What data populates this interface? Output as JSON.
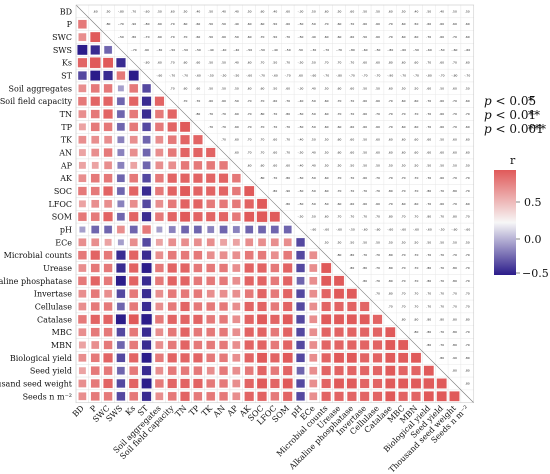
{
  "chart_data": {
    "type": "heatmap",
    "variables": [
      "BD",
      "P",
      "SWC",
      "SWS",
      "Ks",
      "ST",
      "Soil aggregates",
      "Soil field capacity",
      "TN",
      "TP",
      "TK",
      "AN",
      "AP",
      "AK",
      "SOC",
      "LFOC",
      "SOM",
      "pH",
      "ECe",
      "Microbial counts",
      "Urease",
      "Alkaline phosphatase",
      "Invertase",
      "Cellulase",
      "Catalase",
      "MBC",
      "MBN",
      "Biological yield",
      "Seed yield",
      "Thousand seed weight",
      "Seeds n m⁻²"
    ],
    "group_values": [
      [
        1.0,
        0.6,
        0.5,
        -0.8,
        0.7,
        -0.6,
        0.5,
        0.6,
        0.5,
        0.4,
        0.5,
        0.4,
        0.4,
        0.5,
        0.6,
        0.4,
        0.6,
        -0.3,
        0.5,
        0.6,
        0.5,
        0.6,
        0.5,
        0.5,
        0.6,
        0.5,
        0.4,
        0.5,
        0.4,
        0.5,
        0.5
      ],
      [
        0.6,
        1.0,
        0.8,
        -0.7,
        0.9,
        -0.8,
        0.6,
        0.7,
        0.6,
        0.6,
        0.5,
        0.5,
        0.4,
        0.6,
        0.6,
        0.5,
        0.6,
        -0.5,
        0.5,
        0.7,
        0.6,
        0.7,
        0.6,
        0.6,
        0.7,
        0.6,
        0.5,
        0.6,
        0.6,
        0.6,
        0.6
      ],
      [
        0.5,
        0.8,
        1.0,
        -0.5,
        0.8,
        -0.7,
        0.6,
        0.7,
        0.7,
        0.6,
        0.5,
        0.6,
        0.5,
        0.6,
        0.7,
        0.5,
        0.7,
        -0.5,
        0.4,
        0.6,
        0.6,
        0.6,
        0.5,
        0.6,
        0.7,
        0.6,
        0.6,
        0.7,
        0.6,
        0.7,
        0.6
      ],
      [
        -0.8,
        -0.7,
        -0.5,
        1.0,
        -0.7,
        0.6,
        -0.3,
        -0.5,
        -0.5,
        -0.5,
        -0.4,
        -0.4,
        -0.4,
        -0.5,
        -0.5,
        -0.4,
        -0.5,
        0.5,
        -0.3,
        -0.7,
        -0.7,
        -0.8,
        -0.6,
        -0.5,
        -0.8,
        -0.6,
        -0.5,
        -0.6,
        -0.5,
        -0.6,
        -0.6
      ],
      [
        0.7,
        0.9,
        0.8,
        -0.7,
        1.0,
        -0.8,
        0.6,
        0.7,
        0.6,
        0.6,
        0.5,
        0.5,
        0.4,
        0.6,
        0.7,
        0.5,
        0.7,
        -0.5,
        0.5,
        0.7,
        0.7,
        0.7,
        0.6,
        0.6,
        0.8,
        0.6,
        0.6,
        0.7,
        0.6,
        0.7,
        0.6
      ],
      [
        -0.6,
        -0.8,
        -0.7,
        0.6,
        -0.8,
        1.0,
        -0.6,
        -0.7,
        -0.7,
        -0.6,
        -0.5,
        -0.5,
        -0.5,
        -0.6,
        -0.7,
        -0.6,
        -0.7,
        0.6,
        -0.6,
        -0.7,
        -0.8,
        -0.7,
        -0.7,
        -0.7,
        -0.9,
        -0.7,
        -0.7,
        -0.8,
        -0.7,
        -0.8,
        -0.7
      ],
      [
        0.5,
        0.6,
        0.6,
        -0.3,
        0.6,
        -0.6,
        1.0,
        0.7,
        0.6,
        0.6,
        0.5,
        0.5,
        0.5,
        0.6,
        0.6,
        0.5,
        0.6,
        -0.3,
        0.4,
        0.5,
        0.6,
        0.6,
        0.5,
        0.5,
        0.6,
        0.5,
        0.5,
        0.6,
        0.5,
        0.6,
        0.5
      ],
      [
        0.6,
        0.7,
        0.7,
        -0.5,
        0.7,
        -0.7,
        0.7,
        1.0,
        0.7,
        0.7,
        0.6,
        0.6,
        0.5,
        0.7,
        0.7,
        0.6,
        0.7,
        -0.4,
        0.5,
        0.6,
        0.7,
        0.7,
        0.6,
        0.6,
        0.7,
        0.6,
        0.6,
        0.7,
        0.6,
        0.7,
        0.6
      ],
      [
        0.5,
        0.6,
        0.7,
        -0.5,
        0.6,
        -0.7,
        0.6,
        0.7,
        1.0,
        0.8,
        0.7,
        0.7,
        0.6,
        0.7,
        0.8,
        0.7,
        0.8,
        -0.5,
        0.5,
        0.6,
        0.7,
        0.7,
        0.6,
        0.7,
        0.7,
        0.7,
        0.7,
        0.7,
        0.6,
        0.7,
        0.7
      ],
      [
        0.4,
        0.6,
        0.6,
        -0.5,
        0.6,
        -0.6,
        0.6,
        0.7,
        0.8,
        1.0,
        0.7,
        0.7,
        0.6,
        0.7,
        0.7,
        0.7,
        0.7,
        -0.5,
        0.5,
        0.6,
        0.6,
        0.6,
        0.6,
        0.6,
        0.7,
        0.6,
        0.6,
        0.7,
        0.6,
        0.7,
        0.6
      ],
      [
        0.5,
        0.5,
        0.5,
        -0.4,
        0.5,
        -0.5,
        0.5,
        0.6,
        0.7,
        0.7,
        1.0,
        0.7,
        0.6,
        0.7,
        0.7,
        0.6,
        0.7,
        -0.4,
        0.5,
        0.5,
        0.6,
        0.6,
        0.5,
        0.6,
        0.6,
        0.6,
        0.6,
        0.6,
        0.5,
        0.6,
        0.6
      ],
      [
        0.4,
        0.5,
        0.6,
        -0.4,
        0.5,
        -0.5,
        0.5,
        0.6,
        0.7,
        0.7,
        0.7,
        1.0,
        0.6,
        0.7,
        0.7,
        0.6,
        0.7,
        -0.5,
        0.4,
        0.5,
        0.6,
        0.6,
        0.5,
        0.6,
        0.6,
        0.6,
        0.6,
        0.6,
        0.6,
        0.6,
        0.6
      ],
      [
        0.4,
        0.4,
        0.5,
        -0.4,
        0.4,
        -0.5,
        0.5,
        0.5,
        0.6,
        0.6,
        0.6,
        0.6,
        1.0,
        0.6,
        0.6,
        0.6,
        0.6,
        -0.4,
        0.4,
        0.5,
        0.5,
        0.5,
        0.5,
        0.5,
        0.5,
        0.5,
        0.5,
        0.5,
        0.5,
        0.5,
        0.5
      ],
      [
        0.5,
        0.6,
        0.6,
        -0.5,
        0.6,
        -0.6,
        0.6,
        0.7,
        0.7,
        0.7,
        0.7,
        0.7,
        0.6,
        1.0,
        0.8,
        0.7,
        0.8,
        -0.5,
        0.5,
        0.6,
        0.7,
        0.7,
        0.6,
        0.7,
        0.7,
        0.7,
        0.7,
        0.7,
        0.6,
        0.7,
        0.7
      ],
      [
        0.6,
        0.6,
        0.7,
        -0.5,
        0.7,
        -0.7,
        0.6,
        0.7,
        0.8,
        0.7,
        0.7,
        0.7,
        0.6,
        0.8,
        1.0,
        0.8,
        0.9,
        -0.5,
        0.5,
        0.6,
        0.7,
        0.7,
        0.7,
        0.7,
        0.8,
        0.7,
        0.7,
        0.8,
        0.7,
        0.8,
        0.7
      ],
      [
        0.4,
        0.5,
        0.5,
        -0.4,
        0.5,
        -0.6,
        0.5,
        0.6,
        0.7,
        0.7,
        0.6,
        0.6,
        0.6,
        0.7,
        0.8,
        1.0,
        0.8,
        -0.5,
        0.5,
        0.5,
        0.6,
        0.6,
        0.6,
        0.6,
        0.7,
        0.6,
        0.6,
        0.7,
        0.6,
        0.7,
        0.6
      ],
      [
        0.6,
        0.6,
        0.7,
        -0.5,
        0.7,
        -0.7,
        0.6,
        0.7,
        0.8,
        0.7,
        0.7,
        0.7,
        0.6,
        0.8,
        0.9,
        0.8,
        1.0,
        -0.5,
        0.5,
        0.6,
        0.7,
        0.7,
        0.7,
        0.7,
        0.8,
        0.7,
        0.7,
        0.8,
        0.7,
        0.8,
        0.7
      ],
      [
        -0.3,
        -0.5,
        -0.5,
        0.5,
        -0.5,
        0.6,
        -0.3,
        -0.4,
        -0.5,
        -0.5,
        -0.4,
        -0.5,
        -0.4,
        -0.5,
        -0.5,
        -0.5,
        -0.5,
        1.0,
        -0.6,
        -0.6,
        -0.6,
        -0.5,
        -0.6,
        -0.6,
        -0.6,
        -0.6,
        -0.6,
        -0.6,
        -0.5,
        -0.6,
        -0.6
      ],
      [
        0.5,
        0.5,
        0.4,
        -0.3,
        0.5,
        -0.6,
        0.4,
        0.5,
        0.5,
        0.5,
        0.5,
        0.4,
        0.4,
        0.5,
        0.5,
        0.5,
        0.5,
        -0.6,
        1.0,
        0.5,
        0.5,
        0.5,
        0.5,
        0.5,
        0.5,
        0.5,
        0.5,
        0.5,
        0.5,
        0.5,
        0.5
      ],
      [
        0.6,
        0.7,
        0.6,
        -0.7,
        0.7,
        -0.7,
        0.5,
        0.6,
        0.6,
        0.6,
        0.5,
        0.5,
        0.5,
        0.6,
        0.6,
        0.5,
        0.6,
        -0.6,
        0.5,
        1.0,
        0.8,
        0.8,
        0.7,
        0.7,
        0.8,
        0.7,
        0.7,
        0.7,
        0.7,
        0.7,
        0.7
      ],
      [
        0.5,
        0.6,
        0.6,
        -0.7,
        0.7,
        -0.8,
        0.6,
        0.7,
        0.7,
        0.6,
        0.6,
        0.6,
        0.5,
        0.7,
        0.7,
        0.6,
        0.7,
        -0.6,
        0.5,
        0.8,
        1.0,
        0.8,
        0.8,
        0.7,
        0.8,
        0.7,
        0.7,
        0.8,
        0.7,
        0.8,
        0.7
      ],
      [
        0.6,
        0.7,
        0.6,
        -0.8,
        0.7,
        -0.7,
        0.6,
        0.7,
        0.7,
        0.6,
        0.6,
        0.6,
        0.5,
        0.7,
        0.7,
        0.6,
        0.7,
        -0.5,
        0.5,
        0.8,
        0.8,
        1.0,
        0.8,
        0.7,
        0.8,
        0.7,
        0.7,
        0.8,
        0.7,
        0.8,
        0.7
      ],
      [
        0.5,
        0.6,
        0.5,
        -0.6,
        0.6,
        -0.7,
        0.5,
        0.6,
        0.6,
        0.6,
        0.5,
        0.5,
        0.5,
        0.6,
        0.7,
        0.6,
        0.7,
        -0.6,
        0.5,
        0.7,
        0.8,
        0.8,
        1.0,
        0.7,
        0.8,
        0.7,
        0.7,
        0.7,
        0.7,
        0.7,
        0.7
      ],
      [
        0.5,
        0.6,
        0.6,
        -0.5,
        0.6,
        -0.7,
        0.5,
        0.6,
        0.7,
        0.6,
        0.6,
        0.6,
        0.5,
        0.7,
        0.7,
        0.6,
        0.7,
        -0.6,
        0.5,
        0.7,
        0.7,
        0.7,
        0.7,
        1.0,
        0.7,
        0.7,
        0.7,
        0.7,
        0.7,
        0.7,
        0.7
      ],
      [
        0.6,
        0.7,
        0.7,
        -0.8,
        0.8,
        -0.9,
        0.6,
        0.7,
        0.7,
        0.7,
        0.6,
        0.6,
        0.5,
        0.7,
        0.8,
        0.7,
        0.8,
        -0.6,
        0.5,
        0.8,
        0.8,
        0.8,
        0.8,
        0.7,
        1.0,
        0.8,
        0.8,
        0.8,
        0.8,
        0.8,
        0.8
      ],
      [
        0.5,
        0.6,
        0.6,
        -0.6,
        0.6,
        -0.7,
        0.5,
        0.6,
        0.7,
        0.6,
        0.6,
        0.6,
        0.5,
        0.7,
        0.7,
        0.6,
        0.7,
        -0.6,
        0.5,
        0.7,
        0.7,
        0.7,
        0.7,
        0.7,
        0.8,
        1.0,
        0.8,
        0.8,
        0.7,
        0.8,
        0.7
      ],
      [
        0.4,
        0.5,
        0.6,
        -0.5,
        0.6,
        -0.7,
        0.5,
        0.6,
        0.7,
        0.6,
        0.6,
        0.6,
        0.5,
        0.7,
        0.7,
        0.6,
        0.7,
        -0.6,
        0.5,
        0.7,
        0.7,
        0.7,
        0.7,
        0.7,
        0.8,
        0.8,
        1.0,
        0.8,
        0.7,
        0.8,
        0.7
      ],
      [
        0.5,
        0.6,
        0.7,
        -0.6,
        0.7,
        -0.8,
        0.6,
        0.7,
        0.7,
        0.7,
        0.6,
        0.6,
        0.5,
        0.7,
        0.8,
        0.7,
        0.8,
        -0.6,
        0.5,
        0.7,
        0.8,
        0.8,
        0.7,
        0.7,
        0.8,
        0.8,
        0.8,
        1.0,
        0.8,
        0.9,
        0.8
      ],
      [
        0.4,
        0.6,
        0.6,
        -0.5,
        0.6,
        -0.7,
        0.5,
        0.6,
        0.6,
        0.6,
        0.5,
        0.6,
        0.5,
        0.6,
        0.7,
        0.6,
        0.7,
        -0.5,
        0.5,
        0.7,
        0.7,
        0.7,
        0.7,
        0.7,
        0.8,
        0.7,
        0.7,
        0.8,
        1.0,
        0.8,
        0.8
      ],
      [
        0.5,
        0.6,
        0.7,
        -0.6,
        0.7,
        -0.8,
        0.6,
        0.7,
        0.7,
        0.7,
        0.6,
        0.6,
        0.5,
        0.7,
        0.8,
        0.7,
        0.8,
        -0.6,
        0.5,
        0.7,
        0.8,
        0.8,
        0.7,
        0.7,
        0.8,
        0.8,
        0.8,
        0.9,
        0.8,
        1.0,
        0.8
      ],
      [
        0.5,
        0.6,
        0.6,
        -0.6,
        0.6,
        -0.7,
        0.5,
        0.6,
        0.7,
        0.6,
        0.6,
        0.6,
        0.5,
        0.7,
        0.7,
        0.6,
        0.7,
        -0.6,
        0.5,
        0.7,
        0.7,
        0.7,
        0.7,
        0.7,
        0.8,
        0.7,
        0.7,
        0.8,
        0.8,
        0.8,
        1.0
      ]
    ],
    "color_scale": {
      "label": "r",
      "min": -0.75,
      "max": 0.75,
      "low": "#2b1c8a",
      "mid": "#f7f7f7",
      "high": "#e05a5a"
    },
    "colorbar_ticks": [
      "0.5",
      "0.0",
      "−0.5"
    ],
    "significance_legend": [
      {
        "label": "p < 0.05",
        "mark": "*"
      },
      {
        "label": "p < 0.01",
        "mark": "**"
      },
      {
        "label": "p < 0.001",
        "mark": "***"
      }
    ]
  }
}
